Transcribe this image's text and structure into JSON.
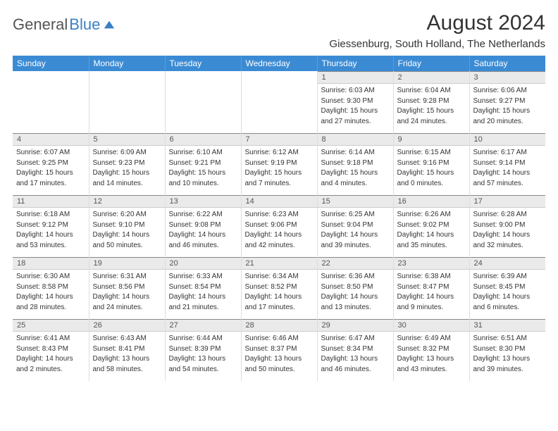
{
  "logo": {
    "part1": "General",
    "part2": "Blue"
  },
  "title": "August 2024",
  "location": "Giessenburg, South Holland, The Netherlands",
  "colors": {
    "header_bg": "#3b8bd4",
    "header_text": "#ffffff",
    "daynum_bg": "#eaeaea",
    "logo_blue": "#3b7fc4",
    "text": "#333333"
  },
  "weekdays": [
    "Sunday",
    "Monday",
    "Tuesday",
    "Wednesday",
    "Thursday",
    "Friday",
    "Saturday"
  ],
  "weeks": [
    [
      null,
      null,
      null,
      null,
      {
        "n": "1",
        "sr": "Sunrise: 6:03 AM",
        "ss": "Sunset: 9:30 PM",
        "d1": "Daylight: 15 hours",
        "d2": "and 27 minutes."
      },
      {
        "n": "2",
        "sr": "Sunrise: 6:04 AM",
        "ss": "Sunset: 9:28 PM",
        "d1": "Daylight: 15 hours",
        "d2": "and 24 minutes."
      },
      {
        "n": "3",
        "sr": "Sunrise: 6:06 AM",
        "ss": "Sunset: 9:27 PM",
        "d1": "Daylight: 15 hours",
        "d2": "and 20 minutes."
      }
    ],
    [
      {
        "n": "4",
        "sr": "Sunrise: 6:07 AM",
        "ss": "Sunset: 9:25 PM",
        "d1": "Daylight: 15 hours",
        "d2": "and 17 minutes."
      },
      {
        "n": "5",
        "sr": "Sunrise: 6:09 AM",
        "ss": "Sunset: 9:23 PM",
        "d1": "Daylight: 15 hours",
        "d2": "and 14 minutes."
      },
      {
        "n": "6",
        "sr": "Sunrise: 6:10 AM",
        "ss": "Sunset: 9:21 PM",
        "d1": "Daylight: 15 hours",
        "d2": "and 10 minutes."
      },
      {
        "n": "7",
        "sr": "Sunrise: 6:12 AM",
        "ss": "Sunset: 9:19 PM",
        "d1": "Daylight: 15 hours",
        "d2": "and 7 minutes."
      },
      {
        "n": "8",
        "sr": "Sunrise: 6:14 AM",
        "ss": "Sunset: 9:18 PM",
        "d1": "Daylight: 15 hours",
        "d2": "and 4 minutes."
      },
      {
        "n": "9",
        "sr": "Sunrise: 6:15 AM",
        "ss": "Sunset: 9:16 PM",
        "d1": "Daylight: 15 hours",
        "d2": "and 0 minutes."
      },
      {
        "n": "10",
        "sr": "Sunrise: 6:17 AM",
        "ss": "Sunset: 9:14 PM",
        "d1": "Daylight: 14 hours",
        "d2": "and 57 minutes."
      }
    ],
    [
      {
        "n": "11",
        "sr": "Sunrise: 6:18 AM",
        "ss": "Sunset: 9:12 PM",
        "d1": "Daylight: 14 hours",
        "d2": "and 53 minutes."
      },
      {
        "n": "12",
        "sr": "Sunrise: 6:20 AM",
        "ss": "Sunset: 9:10 PM",
        "d1": "Daylight: 14 hours",
        "d2": "and 50 minutes."
      },
      {
        "n": "13",
        "sr": "Sunrise: 6:22 AM",
        "ss": "Sunset: 9:08 PM",
        "d1": "Daylight: 14 hours",
        "d2": "and 46 minutes."
      },
      {
        "n": "14",
        "sr": "Sunrise: 6:23 AM",
        "ss": "Sunset: 9:06 PM",
        "d1": "Daylight: 14 hours",
        "d2": "and 42 minutes."
      },
      {
        "n": "15",
        "sr": "Sunrise: 6:25 AM",
        "ss": "Sunset: 9:04 PM",
        "d1": "Daylight: 14 hours",
        "d2": "and 39 minutes."
      },
      {
        "n": "16",
        "sr": "Sunrise: 6:26 AM",
        "ss": "Sunset: 9:02 PM",
        "d1": "Daylight: 14 hours",
        "d2": "and 35 minutes."
      },
      {
        "n": "17",
        "sr": "Sunrise: 6:28 AM",
        "ss": "Sunset: 9:00 PM",
        "d1": "Daylight: 14 hours",
        "d2": "and 32 minutes."
      }
    ],
    [
      {
        "n": "18",
        "sr": "Sunrise: 6:30 AM",
        "ss": "Sunset: 8:58 PM",
        "d1": "Daylight: 14 hours",
        "d2": "and 28 minutes."
      },
      {
        "n": "19",
        "sr": "Sunrise: 6:31 AM",
        "ss": "Sunset: 8:56 PM",
        "d1": "Daylight: 14 hours",
        "d2": "and 24 minutes."
      },
      {
        "n": "20",
        "sr": "Sunrise: 6:33 AM",
        "ss": "Sunset: 8:54 PM",
        "d1": "Daylight: 14 hours",
        "d2": "and 21 minutes."
      },
      {
        "n": "21",
        "sr": "Sunrise: 6:34 AM",
        "ss": "Sunset: 8:52 PM",
        "d1": "Daylight: 14 hours",
        "d2": "and 17 minutes."
      },
      {
        "n": "22",
        "sr": "Sunrise: 6:36 AM",
        "ss": "Sunset: 8:50 PM",
        "d1": "Daylight: 14 hours",
        "d2": "and 13 minutes."
      },
      {
        "n": "23",
        "sr": "Sunrise: 6:38 AM",
        "ss": "Sunset: 8:47 PM",
        "d1": "Daylight: 14 hours",
        "d2": "and 9 minutes."
      },
      {
        "n": "24",
        "sr": "Sunrise: 6:39 AM",
        "ss": "Sunset: 8:45 PM",
        "d1": "Daylight: 14 hours",
        "d2": "and 6 minutes."
      }
    ],
    [
      {
        "n": "25",
        "sr": "Sunrise: 6:41 AM",
        "ss": "Sunset: 8:43 PM",
        "d1": "Daylight: 14 hours",
        "d2": "and 2 minutes."
      },
      {
        "n": "26",
        "sr": "Sunrise: 6:43 AM",
        "ss": "Sunset: 8:41 PM",
        "d1": "Daylight: 13 hours",
        "d2": "and 58 minutes."
      },
      {
        "n": "27",
        "sr": "Sunrise: 6:44 AM",
        "ss": "Sunset: 8:39 PM",
        "d1": "Daylight: 13 hours",
        "d2": "and 54 minutes."
      },
      {
        "n": "28",
        "sr": "Sunrise: 6:46 AM",
        "ss": "Sunset: 8:37 PM",
        "d1": "Daylight: 13 hours",
        "d2": "and 50 minutes."
      },
      {
        "n": "29",
        "sr": "Sunrise: 6:47 AM",
        "ss": "Sunset: 8:34 PM",
        "d1": "Daylight: 13 hours",
        "d2": "and 46 minutes."
      },
      {
        "n": "30",
        "sr": "Sunrise: 6:49 AM",
        "ss": "Sunset: 8:32 PM",
        "d1": "Daylight: 13 hours",
        "d2": "and 43 minutes."
      },
      {
        "n": "31",
        "sr": "Sunrise: 6:51 AM",
        "ss": "Sunset: 8:30 PM",
        "d1": "Daylight: 13 hours",
        "d2": "and 39 minutes."
      }
    ]
  ]
}
